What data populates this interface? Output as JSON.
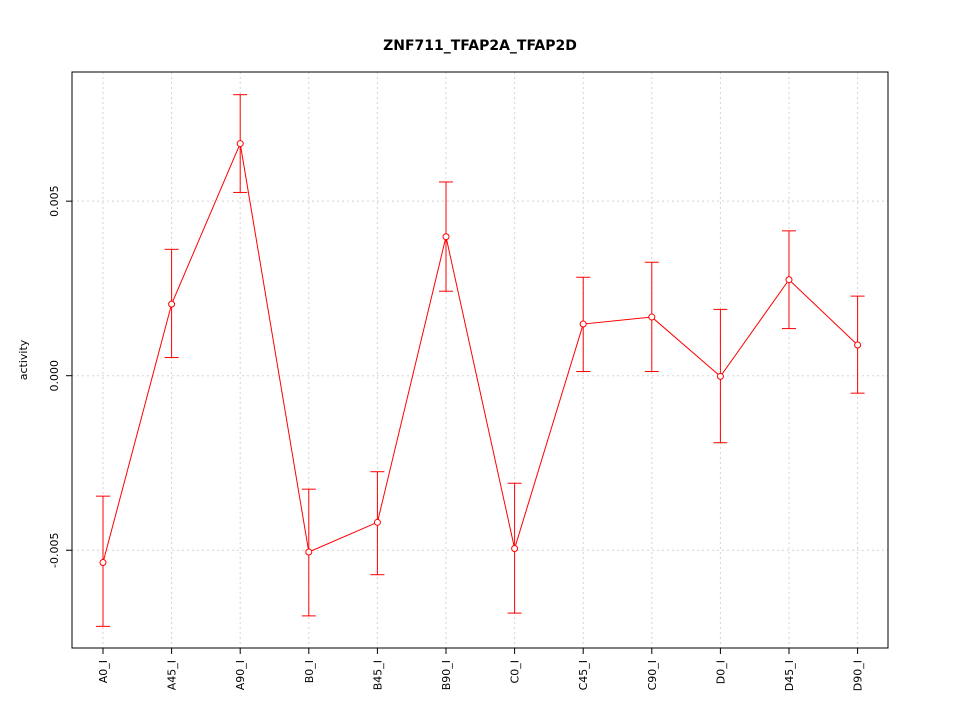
{
  "chart_data": {
    "type": "line",
    "title": "ZNF711_TFAP2A_TFAP2D",
    "xlabel": "",
    "ylabel": "activity",
    "categories": [
      "A0_I",
      "A45_I",
      "A90_I",
      "B0_I",
      "B45_I",
      "B90_I",
      "C0_I",
      "C45_I",
      "C90_I",
      "D0_I",
      "D45_I",
      "D90_I"
    ],
    "series": [
      {
        "values": [
          -0.00535,
          0.00205,
          0.00665,
          -0.00505,
          -0.0042,
          0.00398,
          -0.00495,
          0.00148,
          0.00168,
          -2e-05,
          0.00275,
          0.00088
        ],
        "lower": [
          -0.00718,
          0.00052,
          0.00525,
          -0.00688,
          -0.0057,
          0.00242,
          -0.0068,
          0.00012,
          0.00012,
          -0.00192,
          0.00135,
          -0.0005
        ],
        "upper": [
          -0.00345,
          0.00362,
          0.00805,
          -0.00325,
          -0.00275,
          0.00555,
          -0.00308,
          0.00282,
          0.00325,
          0.0019,
          0.00415,
          0.00228
        ],
        "color": "#ff0000"
      }
    ],
    "yticks": [
      "-0.005",
      "0.000",
      "0.005"
    ],
    "ytick_values": [
      -0.005,
      0,
      0.005
    ],
    "ylim": [
      -0.0078,
      0.0087
    ],
    "grid": true,
    "legend": "none"
  }
}
